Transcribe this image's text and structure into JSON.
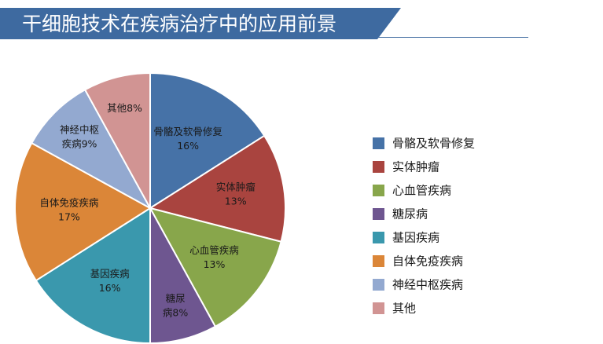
{
  "header": {
    "title": "干细胞技术在疾病治疗中的应用前景"
  },
  "chart_data": {
    "type": "pie",
    "title": "",
    "slices": [
      {
        "label": "骨骼及软骨修复",
        "value": 16,
        "color": "#4672a7",
        "label_lines": [
          "骨骼及软骨修复",
          "16%"
        ]
      },
      {
        "label": "实体肿瘤",
        "value": 13,
        "color": "#a9443f",
        "label_lines": [
          "实体肿瘤",
          "13%"
        ]
      },
      {
        "label": "心血管疾病",
        "value": 13,
        "color": "#88a64b",
        "label_lines": [
          "心血管疾病",
          "13%"
        ]
      },
      {
        "label": "糖尿病",
        "value": 8,
        "color": "#6e5690",
        "label_lines": [
          "糖尿",
          "病8%"
        ]
      },
      {
        "label": "基因疾病",
        "value": 16,
        "color": "#3a98ad",
        "label_lines": [
          "基因疾病",
          "16%"
        ]
      },
      {
        "label": "自体免疫疾病",
        "value": 17,
        "color": "#db8638",
        "label_lines": [
          "自体免疫疾病",
          "17%"
        ]
      },
      {
        "label": "神经中枢疾病",
        "value": 9,
        "color": "#93a9d0",
        "label_lines": [
          "神经中枢",
          "疾病9%"
        ]
      },
      {
        "label": "其他",
        "value": 8,
        "color": "#d19493",
        "label_lines": [
          "其他8%"
        ]
      }
    ],
    "legend_position": "right"
  }
}
